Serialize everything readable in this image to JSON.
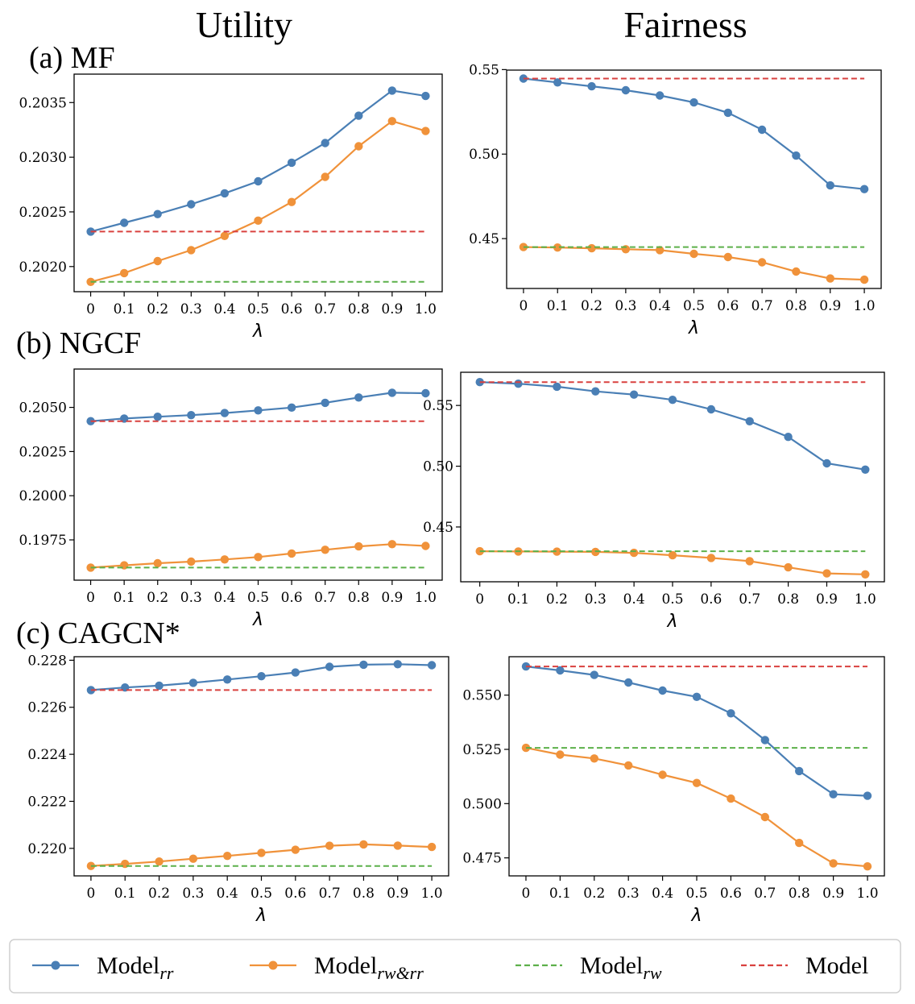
{
  "figure": {
    "column_titles": [
      "Utility",
      "Fairness"
    ],
    "row_labels": [
      "(a) MF",
      "(b) NGCF",
      "(c) CAGCN*"
    ]
  },
  "legend": {
    "entries": [
      {
        "base": "Model",
        "sub": "rr",
        "color": "#4a7fb5",
        "style": "line-marker"
      },
      {
        "base": "Model",
        "sub": "rw&rr",
        "color": "#f0923a",
        "style": "line-marker"
      },
      {
        "base": "Model",
        "sub": "rw",
        "color": "#5cb04a",
        "style": "dashed"
      },
      {
        "base": "Model",
        "sub": "",
        "color": "#d9413f",
        "style": "dashed"
      }
    ]
  },
  "chart_data": [
    {
      "type": "line",
      "row": 0,
      "col": 0,
      "xlabel": "λ",
      "x": [
        0,
        0.1,
        0.2,
        0.3,
        0.4,
        0.5,
        0.6,
        0.7,
        0.8,
        0.9,
        1.0
      ],
      "x_tick_labels": [
        "0",
        "0.1",
        "0.2",
        "0.3",
        "0.4",
        "0.5",
        "0.6",
        "0.7",
        "0.8",
        "0.9",
        "1.0"
      ],
      "ylim": [
        0.20177,
        0.20376
      ],
      "yticks": [
        0.202,
        0.2025,
        0.203,
        0.2035
      ],
      "ytick_labels": [
        "0.2020",
        "0.2025",
        "0.2030",
        "0.2035"
      ],
      "series": [
        {
          "name": "Model_rr",
          "color": "#4a7fb5",
          "style": "solid",
          "values": [
            0.20232,
            0.2024,
            0.20248,
            0.20257,
            0.20267,
            0.20278,
            0.20295,
            0.20313,
            0.20338,
            0.20361,
            0.20356
          ]
        },
        {
          "name": "Model_rw&rr",
          "color": "#f0923a",
          "style": "solid",
          "values": [
            0.20186,
            0.20194,
            0.20205,
            0.20215,
            0.20228,
            0.20242,
            0.20259,
            0.20282,
            0.2031,
            0.20333,
            0.20324
          ]
        },
        {
          "name": "Model_rw",
          "color": "#5cb04a",
          "style": "dashed",
          "values": [
            0.20186,
            0.20186,
            0.20186,
            0.20186,
            0.20186,
            0.20186,
            0.20186,
            0.20186,
            0.20186,
            0.20186,
            0.20186
          ]
        },
        {
          "name": "Model",
          "color": "#d9413f",
          "style": "dashed",
          "values": [
            0.20232,
            0.20232,
            0.20232,
            0.20232,
            0.20232,
            0.20232,
            0.20232,
            0.20232,
            0.20232,
            0.20232,
            0.20232
          ]
        }
      ]
    },
    {
      "type": "line",
      "row": 0,
      "col": 1,
      "xlabel": "λ",
      "x": [
        0,
        0.1,
        0.2,
        0.3,
        0.4,
        0.5,
        0.6,
        0.7,
        0.8,
        0.9,
        1.0
      ],
      "x_tick_labels": [
        "0",
        "0.1",
        "0.2",
        "0.3",
        "0.4",
        "0.5",
        "0.6",
        "0.7",
        "0.8",
        "0.9",
        "1.0"
      ],
      "ylim": [
        0.4205,
        0.5497
      ],
      "yticks": [
        0.45,
        0.5,
        0.55
      ],
      "ytick_labels": [
        "0.45",
        "0.50",
        "0.55"
      ],
      "series": [
        {
          "name": "Model_rr",
          "color": "#4a7fb5",
          "style": "solid",
          "values": [
            0.5447,
            0.5424,
            0.5401,
            0.5378,
            0.5347,
            0.5306,
            0.5245,
            0.5144,
            0.4991,
            0.4815,
            0.4793
          ]
        },
        {
          "name": "Model_rw&rr",
          "color": "#f0923a",
          "style": "solid",
          "values": [
            0.445,
            0.4447,
            0.4443,
            0.4437,
            0.4432,
            0.441,
            0.4391,
            0.436,
            0.4305,
            0.4264,
            0.4257
          ]
        },
        {
          "name": "Model_rw",
          "color": "#5cb04a",
          "style": "dashed",
          "values": [
            0.445,
            0.445,
            0.445,
            0.445,
            0.445,
            0.445,
            0.445,
            0.445,
            0.445,
            0.445,
            0.445
          ]
        },
        {
          "name": "Model",
          "color": "#d9413f",
          "style": "dashed",
          "values": [
            0.5447,
            0.5447,
            0.5447,
            0.5447,
            0.5447,
            0.5447,
            0.5447,
            0.5447,
            0.5447,
            0.5447,
            0.5447
          ]
        }
      ]
    },
    {
      "type": "line",
      "row": 1,
      "col": 0,
      "xlabel": "λ",
      "x": [
        0,
        0.1,
        0.2,
        0.3,
        0.4,
        0.5,
        0.6,
        0.7,
        0.8,
        0.9,
        1.0
      ],
      "x_tick_labels": [
        "0",
        "0.1",
        "0.2",
        "0.3",
        "0.4",
        "0.5",
        "0.6",
        "0.7",
        "0.8",
        "0.9",
        "1.0"
      ],
      "ylim": [
        0.19522,
        0.20717
      ],
      "yticks": [
        0.1975,
        0.2,
        0.2025,
        0.205
      ],
      "ytick_labels": [
        "0.1975",
        "0.2000",
        "0.2025",
        "0.2050"
      ],
      "series": [
        {
          "name": "Model_rr",
          "color": "#4a7fb5",
          "style": "solid",
          "values": [
            0.20422,
            0.20437,
            0.20447,
            0.20456,
            0.20468,
            0.20483,
            0.20499,
            0.20526,
            0.20556,
            0.20583,
            0.2058
          ]
        },
        {
          "name": "Model_rw&rr",
          "color": "#f0923a",
          "style": "solid",
          "values": [
            0.19593,
            0.19606,
            0.19618,
            0.19627,
            0.19639,
            0.19653,
            0.19673,
            0.19694,
            0.19713,
            0.19726,
            0.19716
          ]
        },
        {
          "name": "Model_rw",
          "color": "#5cb04a",
          "style": "dashed",
          "values": [
            0.19593,
            0.19593,
            0.19593,
            0.19593,
            0.19593,
            0.19593,
            0.19593,
            0.19593,
            0.19593,
            0.19593,
            0.19593
          ]
        },
        {
          "name": "Model",
          "color": "#d9413f",
          "style": "dashed",
          "values": [
            0.20422,
            0.20422,
            0.20422,
            0.20422,
            0.20422,
            0.20422,
            0.20422,
            0.20422,
            0.20422,
            0.20422,
            0.20422
          ]
        }
      ]
    },
    {
      "type": "line",
      "row": 1,
      "col": 1,
      "xlabel": "λ",
      "x": [
        0,
        0.1,
        0.2,
        0.3,
        0.4,
        0.5,
        0.6,
        0.7,
        0.8,
        0.9,
        1.0
      ],
      "x_tick_labels": [
        "0",
        "0.1",
        "0.2",
        "0.3",
        "0.4",
        "0.5",
        "0.6",
        "0.7",
        "0.8",
        "0.9",
        "1.0"
      ],
      "ylim": [
        0.4049,
        0.5773
      ],
      "yticks": [
        0.45,
        0.5,
        0.55
      ],
      "ytick_labels": [
        "0.45",
        "0.50",
        "0.55"
      ],
      "series": [
        {
          "name": "Model_rr",
          "color": "#4a7fb5",
          "style": "solid",
          "values": [
            0.5692,
            0.5679,
            0.5654,
            0.5616,
            0.5589,
            0.5546,
            0.5468,
            0.537,
            0.5241,
            0.5024,
            0.4972
          ]
        },
        {
          "name": "Model_rw&rr",
          "color": "#f0923a",
          "style": "solid",
          "values": [
            0.43,
            0.4298,
            0.4297,
            0.4295,
            0.4287,
            0.4267,
            0.4245,
            0.4219,
            0.4168,
            0.4118,
            0.411
          ]
        },
        {
          "name": "Model_rw",
          "color": "#5cb04a",
          "style": "dashed",
          "values": [
            0.43,
            0.43,
            0.43,
            0.43,
            0.43,
            0.43,
            0.43,
            0.43,
            0.43,
            0.43,
            0.43
          ]
        },
        {
          "name": "Model",
          "color": "#d9413f",
          "style": "dashed",
          "values": [
            0.5692,
            0.5692,
            0.5692,
            0.5692,
            0.5692,
            0.5692,
            0.5692,
            0.5692,
            0.5692,
            0.5692,
            0.5692
          ]
        }
      ]
    },
    {
      "type": "line",
      "row": 2,
      "col": 0,
      "xlabel": "λ",
      "x": [
        0,
        0.1,
        0.2,
        0.3,
        0.4,
        0.5,
        0.6,
        0.7,
        0.8,
        0.9,
        1.0
      ],
      "x_tick_labels": [
        "0",
        "0.1",
        "0.2",
        "0.3",
        "0.4",
        "0.5",
        "0.6",
        "0.7",
        "0.8",
        "0.9",
        "1.0"
      ],
      "ylim": [
        0.21883,
        0.22815
      ],
      "yticks": [
        0.22,
        0.222,
        0.224,
        0.226,
        0.228
      ],
      "ytick_labels": [
        "0.220",
        "0.222",
        "0.224",
        "0.226",
        "0.228"
      ],
      "series": [
        {
          "name": "Model_rr",
          "color": "#4a7fb5",
          "style": "solid",
          "values": [
            0.22673,
            0.22684,
            0.22692,
            0.22704,
            0.22718,
            0.22732,
            0.22748,
            0.22772,
            0.22781,
            0.22783,
            0.22779
          ]
        },
        {
          "name": "Model_rw&rr",
          "color": "#f0923a",
          "style": "solid",
          "values": [
            0.21925,
            0.21934,
            0.21944,
            0.21956,
            0.21968,
            0.21981,
            0.21994,
            0.22011,
            0.22017,
            0.22012,
            0.22006
          ]
        },
        {
          "name": "Model_rw",
          "color": "#5cb04a",
          "style": "dashed",
          "values": [
            0.21925,
            0.21925,
            0.21925,
            0.21925,
            0.21925,
            0.21925,
            0.21925,
            0.21925,
            0.21925,
            0.21925,
            0.21925
          ]
        },
        {
          "name": "Model",
          "color": "#d9413f",
          "style": "dashed",
          "values": [
            0.22673,
            0.22673,
            0.22673,
            0.22673,
            0.22673,
            0.22673,
            0.22673,
            0.22673,
            0.22673,
            0.22673,
            0.22673
          ]
        }
      ]
    },
    {
      "type": "line",
      "row": 2,
      "col": 1,
      "xlabel": "λ",
      "x": [
        0,
        0.1,
        0.2,
        0.3,
        0.4,
        0.5,
        0.6,
        0.7,
        0.8,
        0.9,
        1.0
      ],
      "x_tick_labels": [
        "0",
        "0.1",
        "0.2",
        "0.3",
        "0.4",
        "0.5",
        "0.6",
        "0.7",
        "0.8",
        "0.9",
        "1.0"
      ],
      "ylim": [
        0.4667,
        0.5677
      ],
      "yticks": [
        0.475,
        0.5,
        0.525,
        0.55
      ],
      "ytick_labels": [
        "0.475",
        "0.500",
        "0.525",
        "0.550"
      ],
      "series": [
        {
          "name": "Model_rr",
          "color": "#4a7fb5",
          "style": "solid",
          "values": [
            0.5632,
            0.5614,
            0.5593,
            0.5558,
            0.5521,
            0.5492,
            0.5416,
            0.5293,
            0.515,
            0.5043,
            0.5036
          ]
        },
        {
          "name": "Model_rw&rr",
          "color": "#f0923a",
          "style": "solid",
          "values": [
            0.5257,
            0.5226,
            0.5208,
            0.5176,
            0.5133,
            0.5095,
            0.5023,
            0.4938,
            0.4819,
            0.4725,
            0.4711
          ]
        },
        {
          "name": "Model_rw",
          "color": "#5cb04a",
          "style": "dashed",
          "values": [
            0.5257,
            0.5257,
            0.5257,
            0.5257,
            0.5257,
            0.5257,
            0.5257,
            0.5257,
            0.5257,
            0.5257,
            0.5257
          ]
        },
        {
          "name": "Model",
          "color": "#d9413f",
          "style": "dashed",
          "values": [
            0.5632,
            0.5632,
            0.5632,
            0.5632,
            0.5632,
            0.5632,
            0.5632,
            0.5632,
            0.5632,
            0.5632,
            0.5632
          ]
        }
      ]
    }
  ]
}
